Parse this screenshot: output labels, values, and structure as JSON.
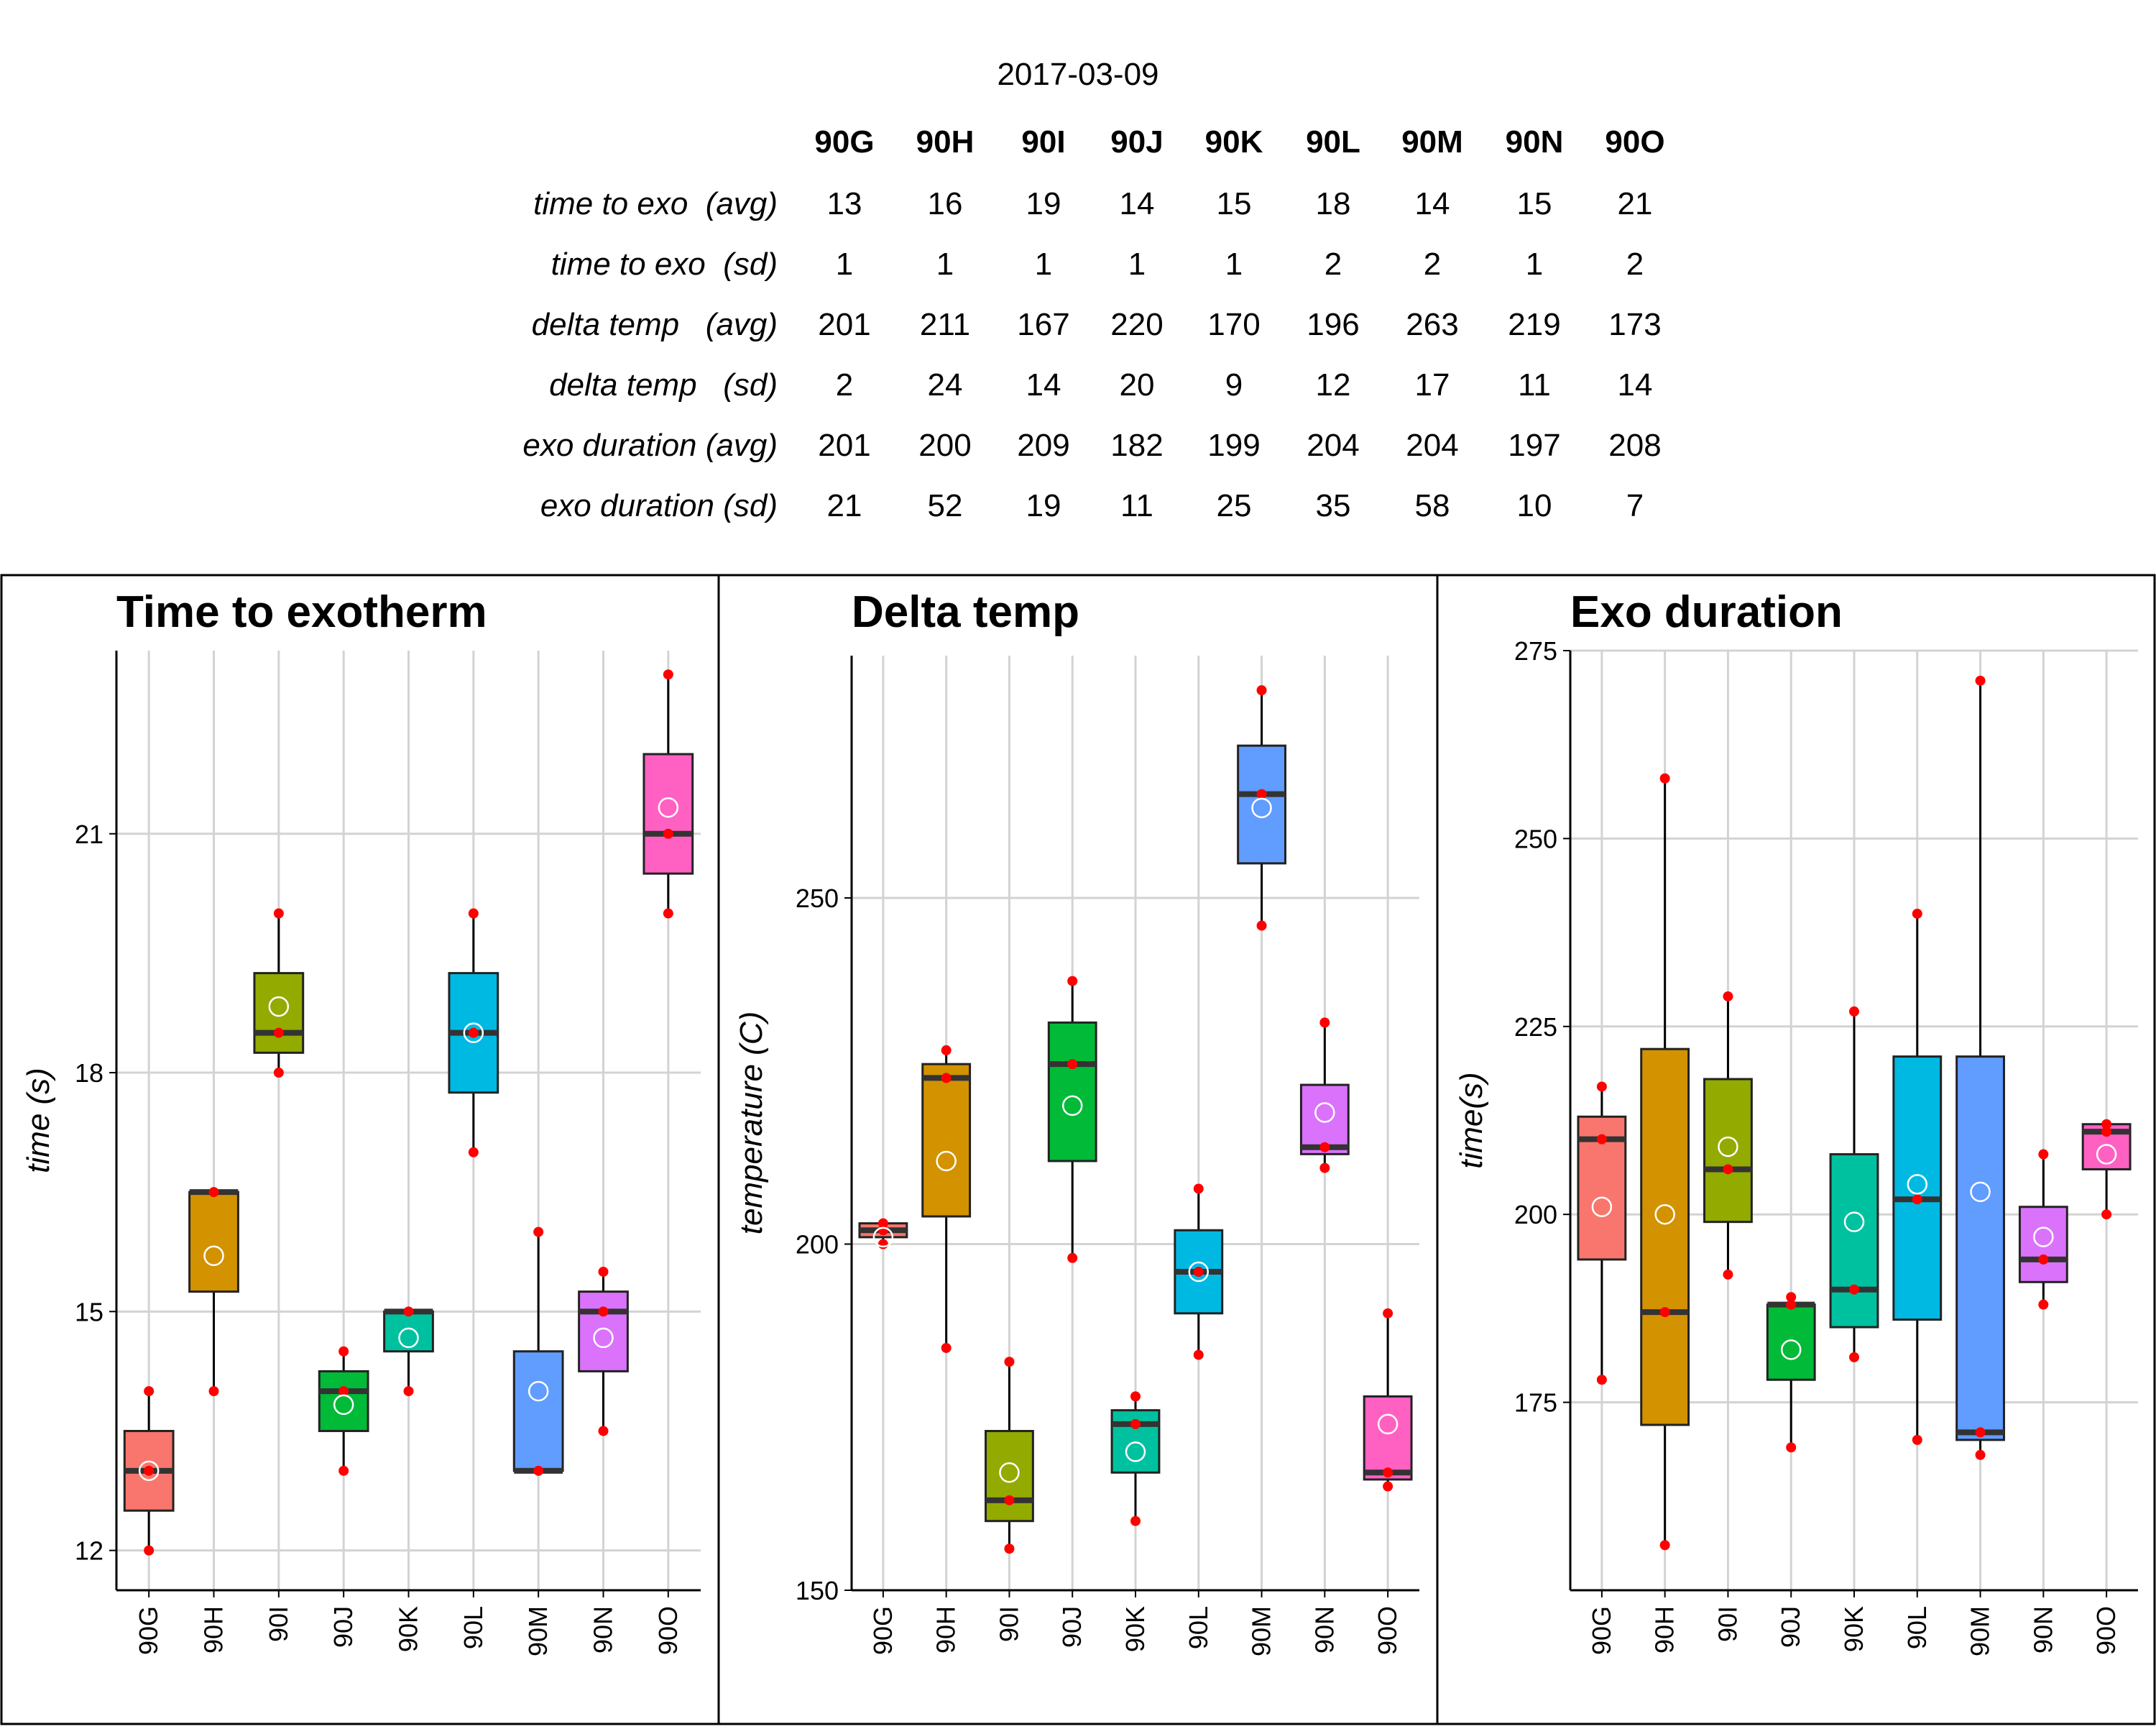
{
  "summary": {
    "date": "2017-03-09",
    "columns": [
      "90G",
      "90H",
      "90I",
      "90J",
      "90K",
      "90L",
      "90M",
      "90N",
      "90O"
    ],
    "rows": [
      {
        "label": "time to exo  (avg)",
        "values": [
          "13",
          "16",
          "19",
          "14",
          "15",
          "18",
          "14",
          "15",
          "21"
        ]
      },
      {
        "label": "time to exo  (sd)",
        "values": [
          "1",
          "1",
          "1",
          "1",
          "1",
          "2",
          "2",
          "1",
          "2"
        ]
      },
      {
        "label": "delta temp   (avg)",
        "values": [
          "201",
          "211",
          "167",
          "220",
          "170",
          "196",
          "263",
          "219",
          "173"
        ]
      },
      {
        "label": "delta temp   (sd)",
        "values": [
          "2",
          "24",
          "14",
          "20",
          "9",
          "12",
          "17",
          "11",
          "14"
        ]
      },
      {
        "label": "exo duration (avg)",
        "values": [
          "201",
          "200",
          "209",
          "182",
          "199",
          "204",
          "204",
          "197",
          "208"
        ]
      },
      {
        "label": "exo duration (sd)",
        "values": [
          "21",
          "52",
          "19",
          "11",
          "25",
          "35",
          "58",
          "10",
          "7"
        ]
      }
    ]
  },
  "colors": {
    "90G": "#F8766D",
    "90H": "#D39200",
    "90I": "#93AA00",
    "90J": "#00BA38",
    "90K": "#00C19F",
    "90L": "#00B9E3",
    "90M": "#619CFF",
    "90N": "#DB72FB",
    "90O": "#FF61C3",
    "points": "#FF0000",
    "grid": "#D3D3D3",
    "median": "#333333"
  },
  "chart_data": [
    {
      "type": "box",
      "title": "Time to exotherm",
      "xlabel": "",
      "ylabel": "time (s)",
      "ylim": [
        11.5,
        23.3
      ],
      "yticks": [
        12,
        15,
        18,
        21
      ],
      "categories": [
        "90G",
        "90H",
        "90I",
        "90J",
        "90K",
        "90L",
        "90M",
        "90N",
        "90O"
      ],
      "boxes": [
        {
          "q1": 12.5,
          "median": 13.0,
          "q3": 13.5,
          "whisker_low": 12.0,
          "whisker_high": 14.0,
          "mean": 13.0,
          "points": [
            12,
            13,
            14
          ]
        },
        {
          "q1": 15.25,
          "median": 16.5,
          "q3": 16.5,
          "whisker_low": 14.0,
          "whisker_high": 16.5,
          "mean": 15.7,
          "points": [
            14,
            16.5
          ]
        },
        {
          "q1": 18.25,
          "median": 18.5,
          "q3": 19.25,
          "whisker_low": 18.0,
          "whisker_high": 20.0,
          "mean": 18.83,
          "points": [
            18,
            18.5,
            20
          ]
        },
        {
          "q1": 13.5,
          "median": 14.0,
          "q3": 14.25,
          "whisker_low": 13.0,
          "whisker_high": 14.5,
          "mean": 13.83,
          "points": [
            13,
            14,
            14.5
          ]
        },
        {
          "q1": 14.5,
          "median": 15.0,
          "q3": 15.0,
          "whisker_low": 14.0,
          "whisker_high": 15.0,
          "mean": 14.67,
          "points": [
            14,
            15
          ]
        },
        {
          "q1": 17.75,
          "median": 18.5,
          "q3": 19.25,
          "whisker_low": 17.0,
          "whisker_high": 20.0,
          "mean": 18.5,
          "points": [
            17,
            18.5,
            20
          ]
        },
        {
          "q1": 13.0,
          "median": 13.0,
          "q3": 14.5,
          "whisker_low": 13.0,
          "whisker_high": 16.0,
          "mean": 14.0,
          "points": [
            13,
            16
          ]
        },
        {
          "q1": 14.25,
          "median": 15.0,
          "q3": 15.25,
          "whisker_low": 13.5,
          "whisker_high": 15.5,
          "mean": 14.67,
          "points": [
            13.5,
            15,
            15.5
          ]
        },
        {
          "q1": 20.5,
          "median": 21.0,
          "q3": 22.0,
          "whisker_low": 20.0,
          "whisker_high": 23.0,
          "mean": 21.33,
          "points": [
            20,
            21,
            23
          ]
        }
      ]
    },
    {
      "type": "box",
      "title": "Delta temp",
      "xlabel": "",
      "ylabel": "temperature (C)",
      "ylim": [
        150,
        285
      ],
      "yticks": [
        150,
        200,
        250
      ],
      "categories": [
        "90G",
        "90H",
        "90I",
        "90J",
        "90K",
        "90L",
        "90M",
        "90N",
        "90O"
      ],
      "boxes": [
        {
          "q1": 201,
          "median": 202,
          "q3": 203,
          "whisker_low": 200,
          "whisker_high": 203,
          "mean": 201,
          "points": [
            200,
            202,
            203
          ]
        },
        {
          "q1": 204,
          "median": 224,
          "q3": 226,
          "whisker_low": 185,
          "whisker_high": 228,
          "mean": 212,
          "points": [
            185,
            224,
            228
          ]
        },
        {
          "q1": 160,
          "median": 163,
          "q3": 173,
          "whisker_low": 156,
          "whisker_high": 183,
          "mean": 167,
          "points": [
            156,
            163,
            183
          ]
        },
        {
          "q1": 212,
          "median": 226,
          "q3": 232,
          "whisker_low": 198,
          "whisker_high": 238,
          "mean": 220,
          "points": [
            198,
            226,
            238
          ]
        },
        {
          "q1": 167,
          "median": 174,
          "q3": 176,
          "whisker_low": 160,
          "whisker_high": 178,
          "mean": 170,
          "points": [
            160,
            174,
            178
          ]
        },
        {
          "q1": 190,
          "median": 196,
          "q3": 202,
          "whisker_low": 184,
          "whisker_high": 208,
          "mean": 196,
          "points": [
            184,
            196,
            208
          ]
        },
        {
          "q1": 255,
          "median": 265,
          "q3": 272,
          "whisker_low": 246,
          "whisker_high": 280,
          "mean": 263,
          "points": [
            246,
            265,
            280
          ]
        },
        {
          "q1": 213,
          "median": 214,
          "q3": 223,
          "whisker_low": 211,
          "whisker_high": 232,
          "mean": 219,
          "points": [
            211,
            214,
            232
          ]
        },
        {
          "q1": 166,
          "median": 167,
          "q3": 178,
          "whisker_low": 165,
          "whisker_high": 190,
          "mean": 174,
          "points": [
            165,
            167,
            190
          ]
        }
      ]
    },
    {
      "type": "box",
      "title": "Exo duration",
      "xlabel": "",
      "ylabel": "time(s)",
      "ylim": [
        150,
        275
      ],
      "yticks": [
        175,
        200,
        225,
        250,
        275
      ],
      "categories": [
        "90G",
        "90H",
        "90I",
        "90J",
        "90K",
        "90L",
        "90M",
        "90N",
        "90O"
      ],
      "boxes": [
        {
          "q1": 194,
          "median": 210,
          "q3": 213,
          "whisker_low": 178,
          "whisker_high": 217,
          "mean": 201,
          "points": [
            178,
            210,
            217
          ]
        },
        {
          "q1": 172,
          "median": 187,
          "q3": 222,
          "whisker_low": 156,
          "whisker_high": 258,
          "mean": 200,
          "points": [
            156,
            187,
            258
          ]
        },
        {
          "q1": 199,
          "median": 206,
          "q3": 218,
          "whisker_low": 192,
          "whisker_high": 229,
          "mean": 209,
          "points": [
            192,
            206,
            229
          ]
        },
        {
          "q1": 178,
          "median": 188,
          "q3": 188,
          "whisker_low": 169,
          "whisker_high": 189,
          "mean": 182,
          "points": [
            169,
            188,
            189
          ]
        },
        {
          "q1": 185,
          "median": 190,
          "q3": 208,
          "whisker_low": 181,
          "whisker_high": 227,
          "mean": 199,
          "points": [
            181,
            190,
            227
          ]
        },
        {
          "q1": 186,
          "median": 202,
          "q3": 221,
          "whisker_low": 170,
          "whisker_high": 240,
          "mean": 204,
          "points": [
            170,
            202,
            240
          ]
        },
        {
          "q1": 170,
          "median": 171,
          "q3": 221,
          "whisker_low": 168,
          "whisker_high": 271,
          "mean": 203,
          "points": [
            168,
            171,
            271
          ]
        },
        {
          "q1": 191,
          "median": 194,
          "q3": 201,
          "whisker_low": 188,
          "whisker_high": 208,
          "mean": 197,
          "points": [
            188,
            194,
            208
          ]
        },
        {
          "q1": 206,
          "median": 211,
          "q3": 212,
          "whisker_low": 200,
          "whisker_high": 212,
          "mean": 208,
          "points": [
            200,
            211,
            212
          ]
        }
      ]
    }
  ]
}
